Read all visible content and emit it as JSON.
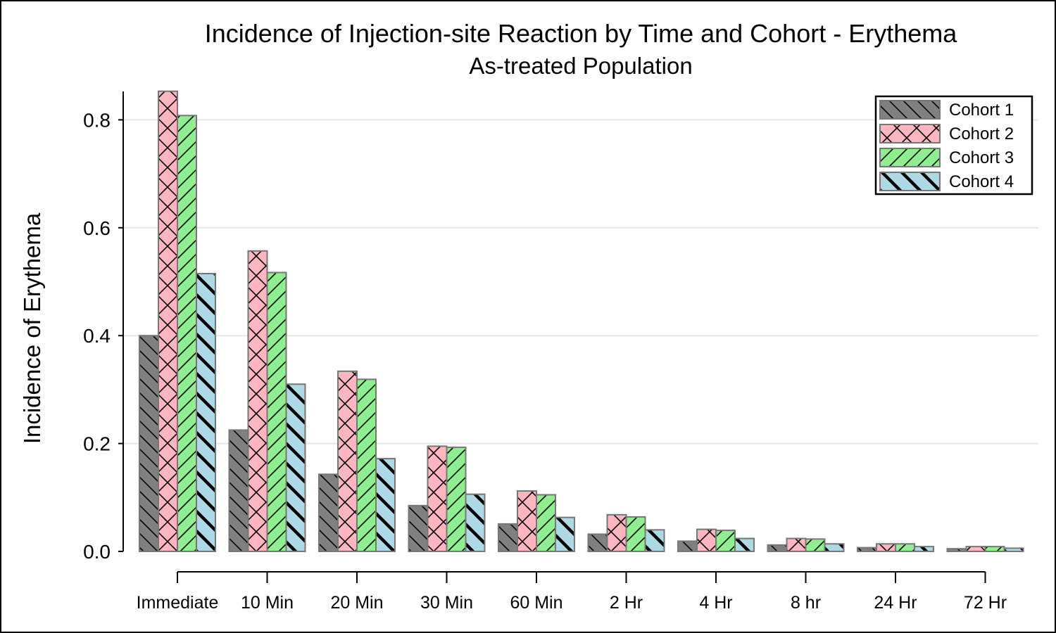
{
  "chart_data": {
    "type": "bar",
    "title": "Incidence of Injection-site Reaction by Time and Cohort - Erythema",
    "subtitle": "As-treated Population",
    "xlabel": "",
    "ylabel": "Incidence of Erythema",
    "ylim": [
      0,
      0.85
    ],
    "yticks": [
      "0.0",
      "0.2",
      "0.4",
      "0.6",
      "0.8"
    ],
    "ytick_values": [
      0,
      0.2,
      0.4,
      0.6,
      0.8
    ],
    "grid": "horizontal",
    "legend_position": "top-right",
    "categories": [
      "Immediate",
      "10 Min",
      "20 Min",
      "30 Min",
      "60 Min",
      "2 Hr",
      "4 Hr",
      "8 hr",
      "24 Hr",
      "72 Hr"
    ],
    "series": [
      {
        "name": "Cohort 1",
        "color": "#808080",
        "hatch": "backslash",
        "values": [
          0.4,
          0.225,
          0.143,
          0.085,
          0.051,
          0.032,
          0.019,
          0.012,
          0.007,
          0.005
        ]
      },
      {
        "name": "Cohort 2",
        "color": "#ffb6c1",
        "hatch": "cross",
        "values": [
          0.853,
          0.557,
          0.334,
          0.195,
          0.112,
          0.068,
          0.041,
          0.024,
          0.014,
          0.009
        ]
      },
      {
        "name": "Cohort 3",
        "color": "#90ee90",
        "hatch": "slash",
        "values": [
          0.808,
          0.517,
          0.319,
          0.193,
          0.105,
          0.064,
          0.039,
          0.023,
          0.014,
          0.009
        ]
      },
      {
        "name": "Cohort 4",
        "color": "#add8e6",
        "hatch": "thick-backslash",
        "values": [
          0.515,
          0.31,
          0.172,
          0.106,
          0.063,
          0.04,
          0.024,
          0.014,
          0.009,
          0.006
        ]
      }
    ]
  }
}
